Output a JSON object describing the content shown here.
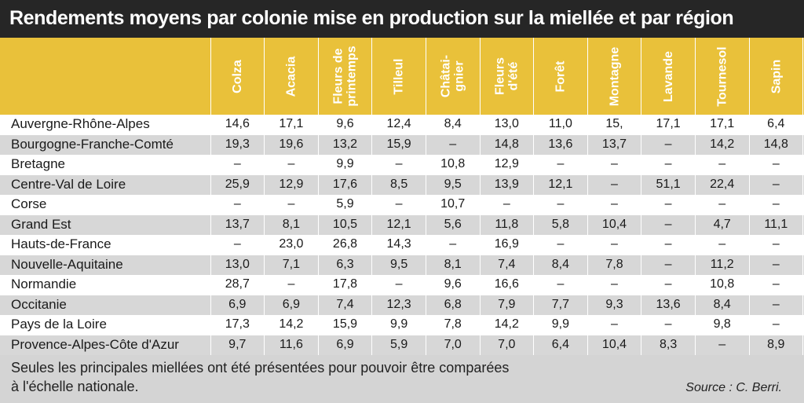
{
  "chart_data": {
    "type": "table",
    "title": "Rendements moyens par colonie mise en production sur la miellée et par région",
    "columns": [
      "Colza",
      "Acacia",
      "Fleurs de printemps",
      "Tilleul",
      "Châtai-gnier",
      "Fleurs d'été",
      "Forêt",
      "Montagne",
      "Lavande",
      "Tournesol",
      "Sapin"
    ],
    "rows": [
      {
        "region": "Auvergne-Rhône-Alpes",
        "values": [
          "14,6",
          "17,1",
          "9,6",
          "12,4",
          "8,4",
          "13,0",
          "11,0",
          "15,",
          "17,1",
          "17,1",
          "6,4"
        ]
      },
      {
        "region": "Bourgogne-Franche-Comté",
        "values": [
          "19,3",
          "19,6",
          "13,2",
          "15,9",
          "–",
          "14,8",
          "13,6",
          "13,7",
          "–",
          "14,2",
          "14,8"
        ]
      },
      {
        "region": "Bretagne",
        "values": [
          "–",
          "–",
          "9,9",
          "–",
          "10,8",
          "12,9",
          "–",
          "–",
          "–",
          "–",
          "–"
        ]
      },
      {
        "region": "Centre-Val de Loire",
        "values": [
          "25,9",
          "12,9",
          "17,6",
          "8,5",
          "9,5",
          "13,9",
          "12,1",
          "–",
          "51,1",
          "22,4",
          "–"
        ]
      },
      {
        "region": "Corse",
        "values": [
          "–",
          "–",
          "5,9",
          "–",
          "10,7",
          "–",
          "–",
          "–",
          "–",
          "–",
          "–"
        ]
      },
      {
        "region": "Grand Est",
        "values": [
          "13,7",
          "8,1",
          "10,5",
          "12,1",
          "5,6",
          "11,8",
          "5,8",
          "10,4",
          "–",
          "4,7",
          "11,1"
        ]
      },
      {
        "region": "Hauts-de-France",
        "values": [
          "–",
          "23,0",
          "26,8",
          "14,3",
          "–",
          "16,9",
          "–",
          "–",
          "–",
          "–",
          "–"
        ]
      },
      {
        "region": "Nouvelle-Aquitaine",
        "values": [
          "13,0",
          "7,1",
          "6,3",
          "9,5",
          "8,1",
          "7,4",
          "8,4",
          "7,8",
          "–",
          "11,2",
          "–"
        ]
      },
      {
        "region": "Normandie",
        "values": [
          "28,7",
          "–",
          "17,8",
          "–",
          "9,6",
          "16,6",
          "–",
          "–",
          "–",
          "10,8",
          "–"
        ]
      },
      {
        "region": "Occitanie",
        "values": [
          "6,9",
          "6,9",
          "7,4",
          "12,3",
          "6,8",
          "7,9",
          "7,7",
          "9,3",
          "13,6",
          "8,4",
          "–"
        ]
      },
      {
        "region": "Pays de la Loire",
        "values": [
          "17,3",
          "14,2",
          "15,9",
          "9,9",
          "7,8",
          "14,2",
          "9,9",
          "–",
          "–",
          "9,8",
          "–"
        ]
      },
      {
        "region": "Provence-Alpes-Côte d'Azur",
        "values": [
          "9,7",
          "11,6",
          "6,9",
          "5,9",
          "7,0",
          "7,0",
          "6,4",
          "10,4",
          "8,3",
          "–",
          "8,9"
        ]
      }
    ]
  },
  "footer": {
    "note_line1": "Seules les principales miellées ont été présentées pour pouvoir être comparées",
    "note_line2": "à l'échelle nationale.",
    "source": "Source : C. Berri."
  },
  "colors": {
    "title_bg": "#262626",
    "header_bg": "#e9c13a",
    "alt_row": "#d7d7d7",
    "footer_bg": "#d4d4d4"
  }
}
